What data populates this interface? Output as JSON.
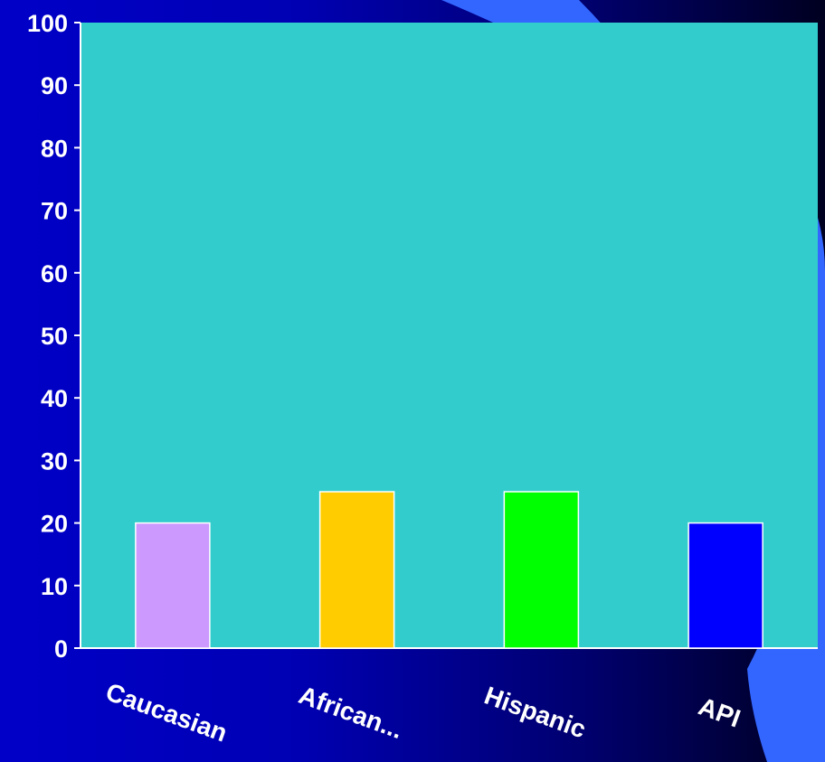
{
  "chart_data": {
    "type": "bar",
    "title": "",
    "xlabel": "",
    "ylabel": "",
    "categories": [
      "Caucasian",
      "African...",
      "Hispanic",
      "API"
    ],
    "values": [
      20,
      25,
      25,
      20
    ],
    "bar_colors": [
      "#cc99ff",
      "#ffcc00",
      "#00ff00",
      "#0000ff"
    ],
    "ylim": [
      0,
      100
    ],
    "yticks": [
      0,
      10,
      20,
      30,
      40,
      50,
      60,
      70,
      80,
      90,
      100
    ],
    "grid": false,
    "legend": "none"
  },
  "colors": {
    "plot_background": "#33cccc",
    "axis_line": "#ffffff",
    "bar_outline": "#ffffff",
    "slide_background": "#0000c0",
    "slide_swoosh": "#3366ff"
  }
}
